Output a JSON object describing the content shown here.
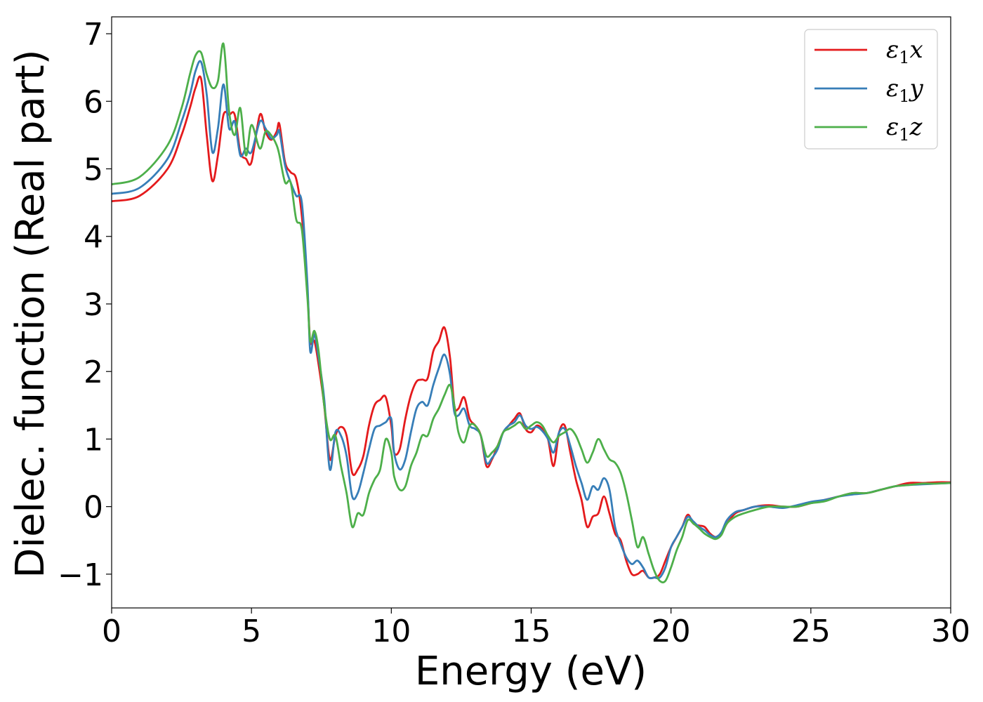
{
  "chart_data": {
    "type": "line",
    "title": "",
    "xlabel": "Energy (eV)",
    "ylabel": "Dielec. function (Real part)",
    "xlim": [
      0,
      30
    ],
    "ylim": [
      -1.5,
      7.25
    ],
    "xticks": [
      0,
      5,
      10,
      15,
      20,
      25,
      30
    ],
    "xtick_labels": [
      "0",
      "5",
      "10",
      "15",
      "20",
      "25",
      "30"
    ],
    "yticks": [
      -1,
      0,
      1,
      2,
      3,
      4,
      5,
      6,
      7
    ],
    "ytick_labels": [
      "−1",
      "0",
      "1",
      "2",
      "3",
      "4",
      "5",
      "6",
      "7"
    ],
    "grid": false,
    "legend": "top-right",
    "series": [
      {
        "name": "ε1x",
        "legend_symbol": "ε",
        "legend_sub": "1",
        "legend_var": "x",
        "color": "#e41a1c",
        "x": [
          0,
          1,
          2,
          2.5,
          2.8,
          3.0,
          3.2,
          3.4,
          3.6,
          3.8,
          4.0,
          4.2,
          4.4,
          4.6,
          4.8,
          5.0,
          5.3,
          5.5,
          5.7,
          5.9,
          6.0,
          6.2,
          6.4,
          6.6,
          6.8,
          7.0,
          7.1,
          7.25,
          7.4,
          7.6,
          7.8,
          8.0,
          8.2,
          8.4,
          8.6,
          8.8,
          9.0,
          9.2,
          9.4,
          9.6,
          9.8,
          10.0,
          10.1,
          10.3,
          10.5,
          10.7,
          10.9,
          11.1,
          11.3,
          11.5,
          11.7,
          11.9,
          12.1,
          12.25,
          12.4,
          12.6,
          12.8,
          13.0,
          13.2,
          13.4,
          13.6,
          13.8,
          14.0,
          14.2,
          14.4,
          14.6,
          14.8,
          15.0,
          15.2,
          15.4,
          15.6,
          15.8,
          16.0,
          16.2,
          16.4,
          16.6,
          16.8,
          17.0,
          17.2,
          17.4,
          17.6,
          17.8,
          18.0,
          18.2,
          18.4,
          18.6,
          18.8,
          19.0,
          19.2,
          19.4,
          19.6,
          19.8,
          20.0,
          20.2,
          20.4,
          20.6,
          20.8,
          21.0,
          21.2,
          21.4,
          21.6,
          21.8,
          22.0,
          22.3,
          22.6,
          23.0,
          23.5,
          24.0,
          24.5,
          25.0,
          25.5,
          26.0,
          26.5,
          27.0,
          27.5,
          28.0,
          28.5,
          29.0,
          29.5,
          30.0
        ],
        "y": [
          4.52,
          4.6,
          5.0,
          5.5,
          5.9,
          6.2,
          6.33,
          5.5,
          4.82,
          5.2,
          5.8,
          5.8,
          5.8,
          5.25,
          5.15,
          5.1,
          5.8,
          5.55,
          5.43,
          5.55,
          5.66,
          5.1,
          4.95,
          4.85,
          4.3,
          3.2,
          2.45,
          2.45,
          2.1,
          1.5,
          0.7,
          1.05,
          1.18,
          1.05,
          0.5,
          0.55,
          0.75,
          1.2,
          1.5,
          1.58,
          1.62,
          1.2,
          0.8,
          0.85,
          1.3,
          1.65,
          1.85,
          1.88,
          1.9,
          2.3,
          2.45,
          2.65,
          2.2,
          1.5,
          1.45,
          1.62,
          1.3,
          1.2,
          1.05,
          0.6,
          0.7,
          0.9,
          1.1,
          1.2,
          1.3,
          1.38,
          1.15,
          1.1,
          1.2,
          1.15,
          1.0,
          0.6,
          1.1,
          1.2,
          0.8,
          0.4,
          0.1,
          -0.3,
          -0.15,
          -0.1,
          0.15,
          -0.1,
          -0.4,
          -0.5,
          -0.8,
          -1.0,
          -1.0,
          -0.95,
          -1.05,
          -1.05,
          -1.0,
          -0.8,
          -0.6,
          -0.45,
          -0.3,
          -0.12,
          -0.25,
          -0.28,
          -0.3,
          -0.4,
          -0.45,
          -0.4,
          -0.25,
          -0.1,
          -0.05,
          0.0,
          0.02,
          0.0,
          0.0,
          0.05,
          0.1,
          0.15,
          0.2,
          0.2,
          0.25,
          0.3,
          0.35,
          0.35,
          0.36,
          0.36
        ]
      },
      {
        "name": "ε1y",
        "legend_symbol": "ε",
        "legend_sub": "1",
        "legend_var": "y",
        "color": "#377eb8",
        "x": [
          0,
          1,
          2,
          2.5,
          2.8,
          3.0,
          3.2,
          3.4,
          3.6,
          3.8,
          4.0,
          4.2,
          4.4,
          4.6,
          4.8,
          5.0,
          5.3,
          5.5,
          5.7,
          5.9,
          6.0,
          6.2,
          6.4,
          6.6,
          6.8,
          7.0,
          7.1,
          7.25,
          7.4,
          7.6,
          7.8,
          8.0,
          8.2,
          8.4,
          8.6,
          8.8,
          9.0,
          9.2,
          9.4,
          9.6,
          9.8,
          10.0,
          10.1,
          10.3,
          10.5,
          10.7,
          10.9,
          11.1,
          11.3,
          11.5,
          11.7,
          11.9,
          12.1,
          12.25,
          12.4,
          12.6,
          12.8,
          13.0,
          13.2,
          13.4,
          13.6,
          13.8,
          14.0,
          14.2,
          14.4,
          14.6,
          14.8,
          15.0,
          15.2,
          15.4,
          15.6,
          15.8,
          16.0,
          16.2,
          16.4,
          16.6,
          16.8,
          17.0,
          17.2,
          17.4,
          17.6,
          17.8,
          18.0,
          18.2,
          18.4,
          18.6,
          18.8,
          19.0,
          19.2,
          19.4,
          19.6,
          19.8,
          20.0,
          20.2,
          20.4,
          20.6,
          20.8,
          21.0,
          21.2,
          21.4,
          21.6,
          21.8,
          22.0,
          22.3,
          22.6,
          23.0,
          23.5,
          24.0,
          24.5,
          25.0,
          25.5,
          26.0,
          26.5,
          27.0,
          27.5,
          28.0,
          28.5,
          29.0,
          29.5,
          30.0
        ],
        "y": [
          4.63,
          4.72,
          5.15,
          5.7,
          6.1,
          6.45,
          6.58,
          6.1,
          5.25,
          5.6,
          6.25,
          5.6,
          5.7,
          5.2,
          5.3,
          5.25,
          5.7,
          5.6,
          5.45,
          5.5,
          5.55,
          5.05,
          4.8,
          4.6,
          4.5,
          3.3,
          2.3,
          2.55,
          2.2,
          1.6,
          0.55,
          1.1,
          1.05,
          0.75,
          0.15,
          0.2,
          0.5,
          0.85,
          1.15,
          1.2,
          1.25,
          1.3,
          0.8,
          0.55,
          0.7,
          1.1,
          1.45,
          1.55,
          1.5,
          1.8,
          2.05,
          2.25,
          1.95,
          1.4,
          1.35,
          1.45,
          1.2,
          1.15,
          1.05,
          0.65,
          0.72,
          0.85,
          1.1,
          1.2,
          1.25,
          1.35,
          1.2,
          1.15,
          1.18,
          1.12,
          1.0,
          0.8,
          1.1,
          1.15,
          0.9,
          0.6,
          0.35,
          0.1,
          0.3,
          0.25,
          0.42,
          0.25,
          -0.3,
          -0.55,
          -0.75,
          -0.85,
          -0.8,
          -0.9,
          -1.05,
          -1.05,
          -1.05,
          -0.9,
          -0.6,
          -0.45,
          -0.3,
          -0.15,
          -0.22,
          -0.3,
          -0.35,
          -0.42,
          -0.45,
          -0.38,
          -0.2,
          -0.08,
          -0.05,
          0.0,
          0.0,
          -0.02,
          0.02,
          0.07,
          0.1,
          0.15,
          0.18,
          0.2,
          0.25,
          0.3,
          0.32,
          0.33,
          0.34,
          0.35
        ]
      },
      {
        "name": "ε1z",
        "legend_symbol": "ε",
        "legend_sub": "1",
        "legend_var": "z",
        "color": "#4daf4a",
        "x": [
          0,
          1,
          2,
          2.5,
          2.8,
          3.0,
          3.2,
          3.4,
          3.6,
          3.8,
          4.0,
          4.2,
          4.4,
          4.6,
          4.8,
          5.0,
          5.3,
          5.5,
          5.7,
          5.9,
          6.0,
          6.2,
          6.4,
          6.6,
          6.8,
          7.0,
          7.1,
          7.25,
          7.4,
          7.6,
          7.8,
          8.0,
          8.2,
          8.4,
          8.6,
          8.8,
          9.0,
          9.2,
          9.4,
          9.6,
          9.8,
          10.0,
          10.1,
          10.3,
          10.5,
          10.7,
          10.9,
          11.1,
          11.3,
          11.5,
          11.7,
          11.9,
          12.1,
          12.25,
          12.4,
          12.6,
          12.8,
          13.0,
          13.2,
          13.4,
          13.6,
          13.8,
          14.0,
          14.2,
          14.4,
          14.6,
          14.8,
          15.0,
          15.2,
          15.4,
          15.6,
          15.8,
          16.0,
          16.2,
          16.4,
          16.6,
          16.8,
          17.0,
          17.2,
          17.4,
          17.6,
          17.8,
          18.0,
          18.2,
          18.4,
          18.6,
          18.8,
          19.0,
          19.2,
          19.4,
          19.6,
          19.8,
          20.0,
          20.2,
          20.4,
          20.6,
          20.8,
          21.0,
          21.2,
          21.4,
          21.6,
          21.8,
          22.0,
          22.3,
          22.6,
          23.0,
          23.5,
          24.0,
          24.5,
          25.0,
          25.5,
          26.0,
          26.5,
          27.0,
          27.5,
          28.0,
          28.5,
          29.0,
          29.5,
          30.0
        ],
        "y": [
          4.77,
          4.88,
          5.35,
          5.9,
          6.4,
          6.68,
          6.72,
          6.4,
          6.2,
          6.3,
          6.85,
          5.85,
          5.5,
          5.9,
          5.2,
          5.65,
          5.3,
          5.55,
          5.5,
          5.35,
          5.2,
          4.8,
          4.8,
          4.25,
          4.1,
          3.1,
          2.45,
          2.6,
          2.3,
          1.5,
          1.0,
          1.05,
          0.6,
          0.2,
          -0.3,
          -0.1,
          -0.12,
          0.2,
          0.4,
          0.55,
          1.0,
          0.8,
          0.45,
          0.25,
          0.3,
          0.6,
          0.8,
          1.05,
          1.05,
          1.3,
          1.45,
          1.65,
          1.8,
          1.5,
          1.1,
          0.95,
          1.2,
          1.2,
          1.05,
          0.75,
          0.8,
          0.9,
          1.1,
          1.15,
          1.2,
          1.25,
          1.15,
          1.2,
          1.25,
          1.2,
          1.05,
          0.95,
          1.05,
          1.1,
          1.15,
          1.05,
          0.85,
          0.65,
          0.8,
          1.0,
          0.85,
          0.7,
          0.65,
          0.5,
          0.2,
          -0.2,
          -0.6,
          -0.45,
          -0.7,
          -0.95,
          -1.1,
          -1.1,
          -0.9,
          -0.65,
          -0.45,
          -0.2,
          -0.25,
          -0.32,
          -0.4,
          -0.45,
          -0.48,
          -0.42,
          -0.25,
          -0.15,
          -0.1,
          -0.05,
          0.0,
          0.0,
          0.0,
          0.05,
          0.08,
          0.15,
          0.2,
          0.2,
          0.25,
          0.3,
          0.32,
          0.34,
          0.34,
          0.35
        ]
      }
    ]
  }
}
